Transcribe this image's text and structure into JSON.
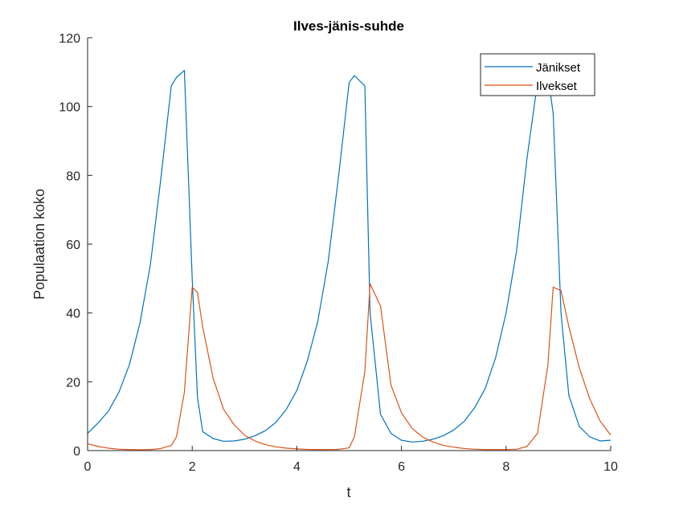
{
  "chart_data": {
    "type": "line",
    "title": "Ilves-jänis-suhde",
    "xlabel": "t",
    "ylabel": "Populaation koko",
    "xlim": [
      0,
      10
    ],
    "ylim": [
      0,
      120
    ],
    "xticks": [
      0,
      2,
      4,
      6,
      8,
      10
    ],
    "yticks": [
      0,
      20,
      40,
      60,
      80,
      100,
      120
    ],
    "grid": false,
    "legend_position": "top-right",
    "x": [
      0,
      0.2,
      0.4,
      0.6,
      0.8,
      1.0,
      1.2,
      1.4,
      1.6,
      1.7,
      1.85,
      2.0,
      2.1,
      2.2,
      2.4,
      2.6,
      2.8,
      3.0,
      3.2,
      3.4,
      3.6,
      3.8,
      4.0,
      4.2,
      4.4,
      4.6,
      4.8,
      5.0,
      5.1,
      5.3,
      5.4,
      5.6,
      5.8,
      6.0,
      6.2,
      6.4,
      6.6,
      6.8,
      7.0,
      7.2,
      7.4,
      7.6,
      7.8,
      8.0,
      8.2,
      8.4,
      8.6,
      8.8,
      8.9,
      9.05,
      9.2,
      9.4,
      9.6,
      9.8,
      10.0
    ],
    "series": [
      {
        "name": "Jänikset",
        "color": "#0072BD",
        "values": [
          5,
          8,
          11.5,
          17,
          25,
          37,
          54,
          79,
          106,
          108.5,
          110.5,
          50,
          15.5,
          5.5,
          3.5,
          2.7,
          2.8,
          3.3,
          4.3,
          5.8,
          8.2,
          12,
          17.5,
          26,
          37.5,
          55,
          80,
          107,
          109,
          106,
          40,
          10.5,
          5,
          3,
          2.5,
          2.7,
          3.3,
          4.3,
          6,
          8.5,
          12.5,
          18,
          27,
          40,
          58,
          85,
          107,
          109,
          98,
          40,
          16,
          7,
          4,
          2.8,
          3
        ]
      },
      {
        "name": "Ilvekset",
        "color": "#D95319",
        "values": [
          2,
          1.2,
          0.7,
          0.4,
          0.3,
          0.25,
          0.3,
          0.6,
          1.5,
          4,
          17,
          47.5,
          46,
          36,
          21,
          12,
          7.5,
          4.5,
          2.8,
          1.7,
          1.1,
          0.7,
          0.5,
          0.35,
          0.3,
          0.3,
          0.35,
          0.8,
          4,
          23,
          48.5,
          42,
          19,
          11,
          6.5,
          4,
          2.5,
          1.5,
          1,
          0.6,
          0.4,
          0.3,
          0.3,
          0.3,
          0.4,
          1.2,
          5,
          25,
          47.5,
          46.5,
          36,
          24,
          15,
          8.5,
          4.5
        ]
      }
    ]
  }
}
